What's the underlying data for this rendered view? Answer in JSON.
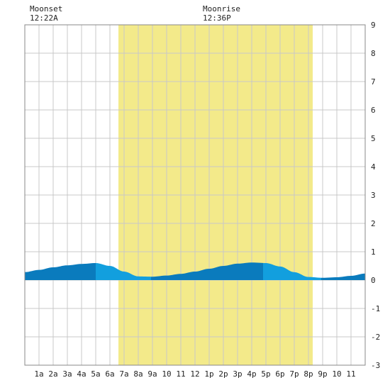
{
  "chart_data": {
    "type": "area",
    "title": "",
    "xlabel": "",
    "ylabel": "",
    "moon_events": [
      {
        "label": "Moonset",
        "time": "12:22A",
        "hour": 0.37
      },
      {
        "label": "Moonrise",
        "time": "12:36P",
        "hour": 12.6
      }
    ],
    "daylight": {
      "start_hour": 6.6,
      "end_hour": 20.3
    },
    "x_tick_labels": [
      "1a",
      "2a",
      "3a",
      "4a",
      "5a",
      "6a",
      "7a",
      "8a",
      "9a",
      "10",
      "11",
      "12",
      "1p",
      "2p",
      "3p",
      "4p",
      "5p",
      "6p",
      "7p",
      "8p",
      "9p",
      "10",
      "11"
    ],
    "xlim": [
      0,
      24
    ],
    "ylim": [
      -3,
      9
    ],
    "y_ticks": [
      -3,
      -2,
      -1,
      0,
      1,
      2,
      3,
      4,
      5,
      6,
      7,
      8,
      9
    ],
    "grid": true,
    "series": [
      {
        "x": [
          0,
          1,
          2,
          3,
          4,
          5,
          6,
          7,
          8,
          9,
          10,
          11,
          12,
          13,
          14,
          15,
          16,
          17,
          18,
          19,
          20,
          21,
          22,
          23,
          24
        ],
        "y": [
          0.28,
          0.36,
          0.45,
          0.52,
          0.57,
          0.6,
          0.5,
          0.3,
          0.13,
          0.12,
          0.16,
          0.22,
          0.3,
          0.4,
          0.5,
          0.58,
          0.62,
          0.6,
          0.48,
          0.28,
          0.11,
          0.08,
          0.1,
          0.15,
          0.23
        ]
      }
    ],
    "fill_segments": [
      {
        "from_hour": 0,
        "to_hour": 5.0,
        "color": "#0a7bbd"
      },
      {
        "from_hour": 5.0,
        "to_hour": 8.9,
        "color": "#129fde"
      },
      {
        "from_hour": 8.9,
        "to_hour": 16.8,
        "color": "#0a7bbd"
      },
      {
        "from_hour": 16.8,
        "to_hour": 20.9,
        "color": "#129fde"
      },
      {
        "from_hour": 20.9,
        "to_hour": 24,
        "color": "#0a7bbd"
      }
    ],
    "colors": {
      "daylight": "#f3ea8a",
      "grid": "#c8c8c8",
      "frame": "#888888"
    }
  }
}
